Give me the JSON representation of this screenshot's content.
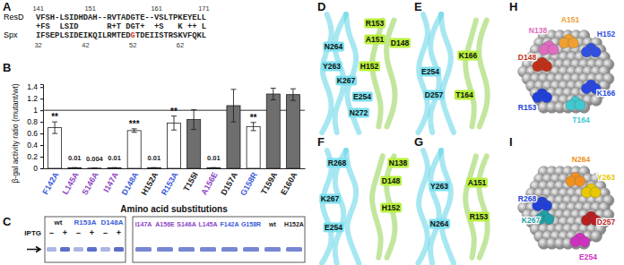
{
  "panel_labels": [
    "A",
    "B",
    "C",
    "D",
    "E",
    "F",
    "G",
    "H",
    "I"
  ],
  "alignment": {
    "rows": [
      {
        "name": "ResD",
        "sequence": "VFSH-LSIDHDAH--RVTADGTE--VSLTPKEYELL",
        "numbers": [
          141,
          151,
          161,
          171
        ]
      },
      {
        "sequence": "+FS  LSID      R+T DGT+  +S   K ++ L"
      },
      {
        "name": "Spx",
        "sequence": "IFSEPLSIDEIKQILRMTEDGTDEIISTRSKVFQKL",
        "numbers": [
          32,
          42,
          52,
          62
        ],
        "highlight_residue": 52,
        "highlight_color": "#e0301e"
      }
    ]
  },
  "chart_data": {
    "type": "bar",
    "y_label": "β-gal activity ratio (mutant/wt)",
    "x_label": "Amino acid substitutions",
    "categories": [
      "F142A",
      "L145A",
      "S146A",
      "I147A",
      "D148A",
      "H152A",
      "R153A",
      "T155I",
      "A156E",
      "D157A",
      "G158R",
      "T159A",
      "E160A"
    ],
    "values": [
      0.7,
      0.01,
      0.004,
      0.01,
      0.65,
      0.01,
      0.78,
      0.84,
      0.01,
      1.08,
      0.72,
      1.28,
      1.27
    ],
    "errors": [
      0.1,
      0,
      0,
      0,
      0.03,
      0,
      0.12,
      0.17,
      0,
      0.28,
      0.07,
      0.1,
      0.1
    ],
    "colors": [
      "#ffffff",
      "#ffffff",
      "#ffffff",
      "#ffffff",
      "#ffffff",
      "#6e6e6e",
      "#ffffff",
      "#6e6e6e",
      "#ffffff",
      "#6e6e6e",
      "#ffffff",
      "#6e6e6e",
      "#6e6e6e"
    ],
    "label_colors": [
      "#3a5bd9",
      "#8b45c4",
      "#8b45c4",
      "#8b45c4",
      "#3a5bd9",
      "#222222",
      "#3a5bd9",
      "#222222",
      "#8b45c4",
      "#222222",
      "#3a5bd9",
      "#222222",
      "#222222"
    ],
    "value_labels": [
      null,
      "0.01",
      "0.004",
      "0.01",
      null,
      "0.01",
      null,
      null,
      "0.01",
      null,
      null,
      null,
      null
    ],
    "significance": [
      "**",
      null,
      null,
      null,
      "***",
      null,
      "**",
      null,
      null,
      null,
      "**",
      null,
      null
    ],
    "reference_line": 1,
    "ylim": [
      0,
      1.45
    ],
    "yticks": [
      0,
      0.2,
      0.4,
      0.6,
      0.8,
      1,
      1.2,
      1.4
    ]
  },
  "gel": {
    "left": {
      "lanes": [
        "wt",
        "R153A",
        "D148A"
      ],
      "lane_colors": [
        "#222222",
        "#3a5bd9",
        "#3a5bd9"
      ],
      "iptg_label": "IPTG",
      "iptg": [
        "–",
        "+"
      ]
    },
    "right": {
      "lanes": [
        "I147A",
        "A156E",
        "S146A",
        "L145A",
        "F142A",
        "G158R",
        "wt",
        "H152A"
      ],
      "lane_colors": [
        "#8b45c4",
        "#8b45c4",
        "#8b45c4",
        "#8b45c4",
        "#3a5bd9",
        "#3a5bd9",
        "#222222",
        "#222222"
      ]
    },
    "band_color": "#4a5fc4"
  },
  "structures": [
    {
      "labels": [
        {
          "text": "R153",
          "color": "#b8f03c"
        },
        {
          "text": "A151",
          "color": "#b8f03c"
        },
        {
          "text": "D148",
          "color": "#b8f03c"
        },
        {
          "text": "N264",
          "color": "#7de0ef"
        },
        {
          "text": "Y263",
          "color": "#7de0ef"
        },
        {
          "text": "H152",
          "color": "#b8f03c"
        },
        {
          "text": "K267",
          "color": "#7de0ef"
        },
        {
          "text": "E254",
          "color": "#7de0ef"
        },
        {
          "text": "N272",
          "color": "#7de0ef"
        }
      ]
    },
    {
      "labels": [
        {
          "text": "E254",
          "color": "#7de0ef"
        },
        {
          "text": "K166",
          "color": "#b8f03c"
        },
        {
          "text": "T164",
          "color": "#b8f03c"
        },
        {
          "text": "D257",
          "color": "#7de0ef"
        }
      ]
    },
    {
      "labels": [
        {
          "text": "R268",
          "color": "#7de0ef"
        },
        {
          "text": "N138",
          "color": "#b8f03c"
        },
        {
          "text": "D148",
          "color": "#b8f03c"
        },
        {
          "text": "K267",
          "color": "#7de0ef"
        },
        {
          "text": "H152",
          "color": "#b8f03c"
        },
        {
          "text": "E254",
          "color": "#7de0ef"
        }
      ]
    },
    {
      "labels": [
        {
          "text": "Y263",
          "color": "#7de0ef"
        },
        {
          "text": "A151",
          "color": "#b8f03c"
        },
        {
          "text": "N264",
          "color": "#7de0ef"
        },
        {
          "text": "R153",
          "color": "#b8f03c"
        }
      ]
    }
  ],
  "surfaces": [
    {
      "labels": [
        {
          "text": "N138",
          "color": "#e06bc0"
        },
        {
          "text": "A151",
          "color": "#f0a030"
        },
        {
          "text": "H152",
          "color": "#3050e0"
        },
        {
          "text": "D148",
          "color": "#c03018"
        },
        {
          "text": "R153",
          "color": "#2040d8"
        },
        {
          "text": "K166",
          "color": "#2a48e0"
        },
        {
          "text": "T164",
          "color": "#40c8d0"
        }
      ]
    },
    {
      "labels": [
        {
          "text": "N264",
          "color": "#f09020"
        },
        {
          "text": "Y263",
          "color": "#e8c800"
        },
        {
          "text": "R268",
          "color": "#2040d8"
        },
        {
          "text": "K267",
          "color": "#20a0a8"
        },
        {
          "text": "D257",
          "color": "#b82020"
        },
        {
          "text": "E254",
          "color": "#d030c0"
        }
      ]
    }
  ]
}
